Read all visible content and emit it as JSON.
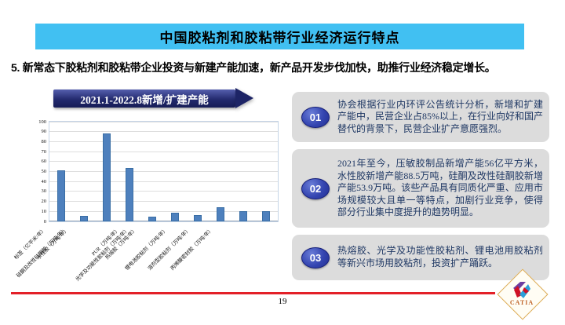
{
  "slide": {
    "title": "中国胶粘剂和胶粘带行业经济运行特点",
    "subtitle": "5. 新常态下胶粘剂和胶粘带企业投资与新建产能加速，新产品开发步伐加快，助推行业经济稳定增长。",
    "page_number": "19",
    "logo_text": "CATIA"
  },
  "chart_data": {
    "type": "bar",
    "title": "2021.1-2022.8新增/扩建产能",
    "categories": [
      "保护膜/胶粘带（亿平米/年）",
      "标签（亿平米/年）",
      "水性胶（万吨/年）",
      "硅酮及改性硅酮胶（万吨/年）",
      "PUR（万吨/年）",
      "热熔胶（万吨/年）",
      "光学及功能性胶粘剂（万吨/年）",
      "锂电池胶粘剂（万吨/年）",
      "溶剂型胶粘剂（万吨/年）",
      "丙烯酸密封胶（万吨/年）"
    ],
    "values": [
      51,
      5.5,
      88.5,
      53.9,
      5,
      9,
      6.5,
      14,
      10,
      10
    ],
    "xlabel": "",
    "ylabel": "",
    "ylim": [
      0,
      100
    ],
    "ytick_step": 10,
    "grid": true,
    "legend": "none"
  },
  "points": [
    {
      "badge": "01",
      "text": "协会根据行业内环评公告统计分析，新增和扩建产能中，民营企业占85%以上，在行业向好和国产替代的背景下，民营企业扩产意愿强烈。"
    },
    {
      "badge": "02",
      "text": "2021年至今，压敏胶制品新增产能56亿平方米，水性胶新增产能88.5万吨，硅酮及改性硅酮胶新增产能53.9万吨。该些产品具有同质化严重、应用市场规模较大且单一等特点，加剧行业竞争，使得部分行业集中度提升的趋势明显。"
    },
    {
      "badge": "03",
      "text": "热熔胶、光学及功能性胶粘剂、锂电池用胶粘剂等新兴市场用胶粘剂，投资扩产踊跃。"
    }
  ],
  "colors": {
    "banner_blue": "#41c0f2",
    "navy": "#1d2466",
    "bar_blue": "#4e80bd",
    "card_gray": "#dcdcdc",
    "badge_blue": "#2a3aa2",
    "red_line": "#e32028",
    "logo_gold": "#dcaa52"
  }
}
